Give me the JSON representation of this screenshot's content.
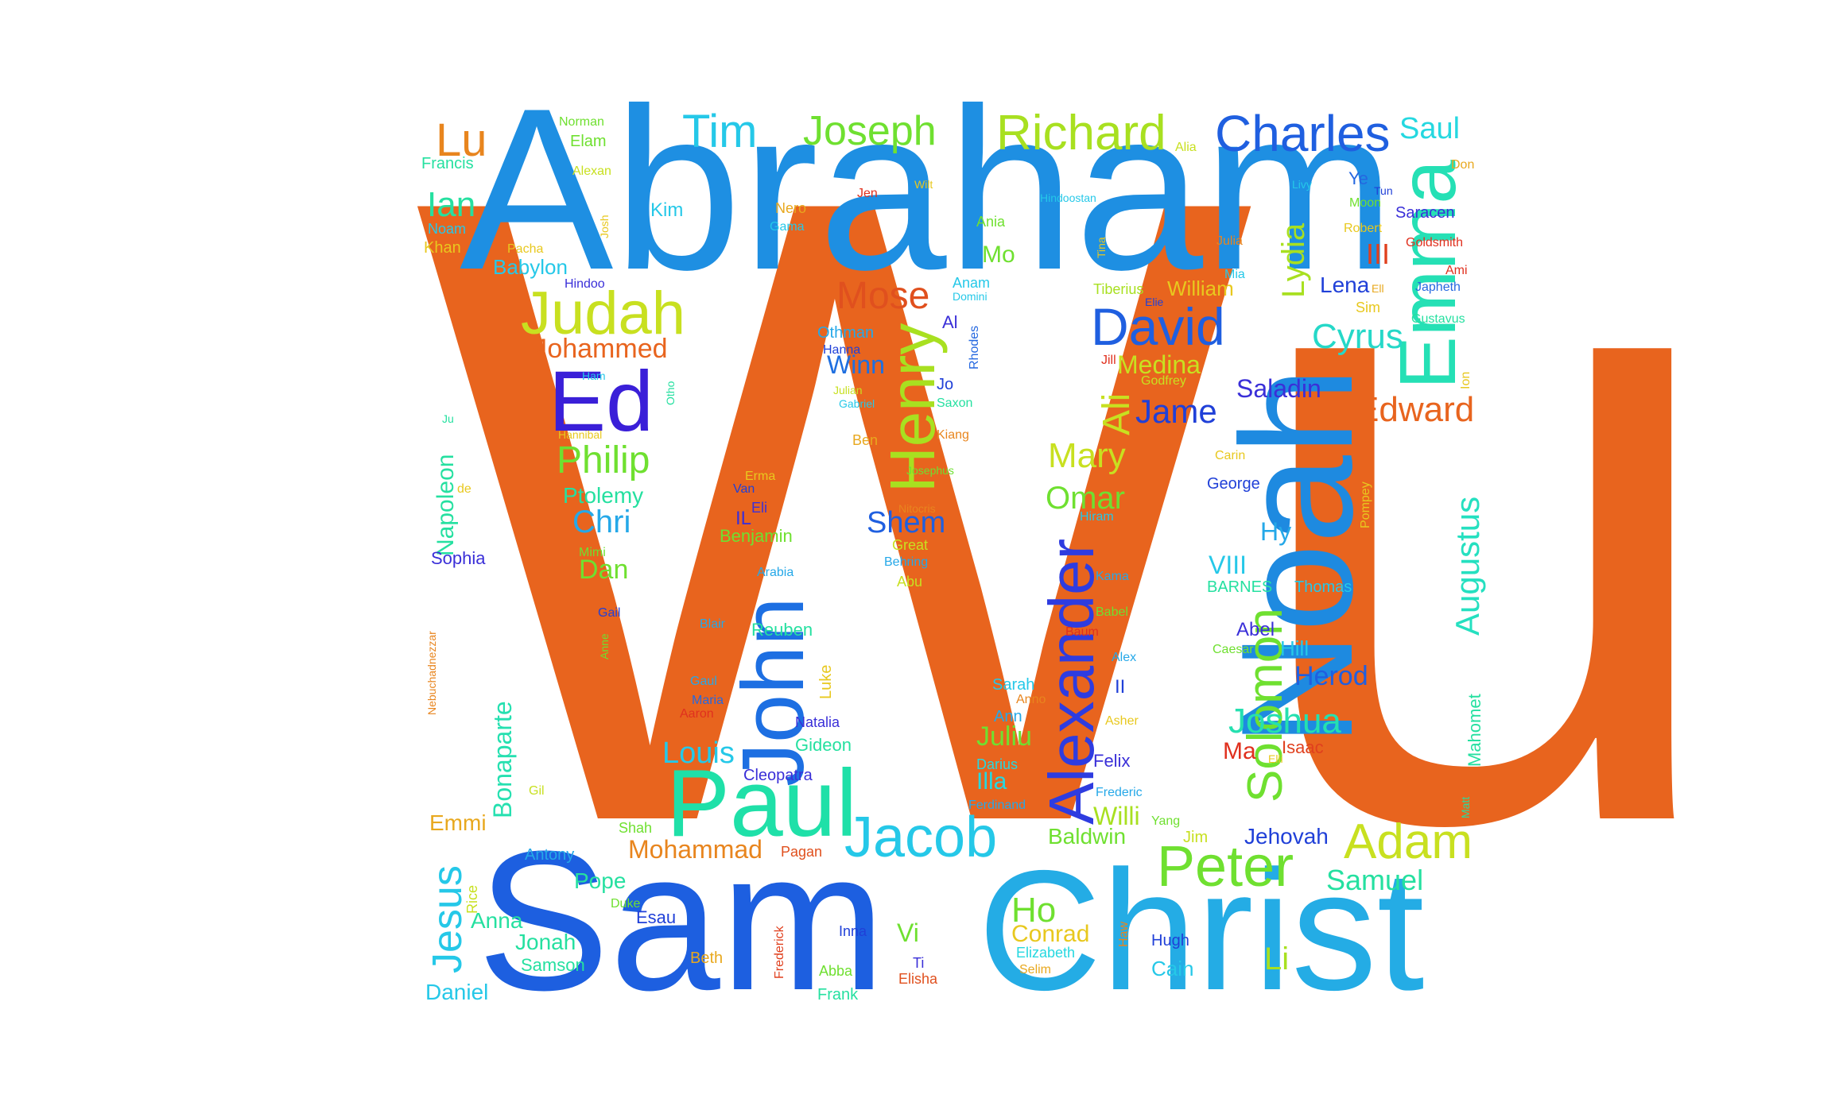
{
  "words": [
    {
      "text": "Wu",
      "color": "#E8641E"
    },
    {
      "text": "Abraham",
      "color": "#1E8FE2"
    },
    {
      "text": "Sam",
      "color": "#1D5FE0"
    },
    {
      "text": "Christ",
      "color": "#24ACE5"
    },
    {
      "text": "Noah",
      "color": "#1E8AE0"
    },
    {
      "text": "Paul",
      "color": "#1FE0A8"
    },
    {
      "text": "John",
      "color": "#1D6FE2"
    },
    {
      "text": "Alexander",
      "color": "#2E3CE0"
    },
    {
      "text": "Emma",
      "color": "#25E0B5"
    },
    {
      "text": "Henry",
      "color": "#A8E020"
    },
    {
      "text": "Jacob",
      "color": "#25C8E8"
    },
    {
      "text": "Peter",
      "color": "#6FE030"
    },
    {
      "text": "Adam",
      "color": "#C8E020"
    },
    {
      "text": "Solomon",
      "color": "#6FE030"
    },
    {
      "text": "Judah",
      "color": "#C8E020"
    },
    {
      "text": "Ed",
      "color": "#3A1FD8"
    },
    {
      "text": "David",
      "color": "#1F5FE0"
    },
    {
      "text": "Charles",
      "color": "#1F5FE0"
    },
    {
      "text": "Richard",
      "color": "#A8E020"
    },
    {
      "text": "Joseph",
      "color": "#6FE030"
    },
    {
      "text": "Tim",
      "color": "#25C8E8"
    },
    {
      "text": "Lu",
      "color": "#E8851E"
    },
    {
      "text": "Ian",
      "color": "#25E0A0"
    },
    {
      "text": "Saul",
      "color": "#25D8E0"
    },
    {
      "text": "Augustus",
      "color": "#25E0C0"
    },
    {
      "text": "Lydia",
      "color": "#A8E020"
    },
    {
      "text": "Ali",
      "color": "#C8E020"
    },
    {
      "text": "Mose",
      "color": "#E0501E"
    },
    {
      "text": "Mohammed",
      "color": "#E8641E"
    },
    {
      "text": "Philip",
      "color": "#6FE030"
    },
    {
      "text": "Chri",
      "color": "#25A8E8"
    },
    {
      "text": "Edward",
      "color": "#E8641E"
    },
    {
      "text": "Jame",
      "color": "#2040D8"
    },
    {
      "text": "Cyrus",
      "color": "#25D8C8"
    },
    {
      "text": "Mary",
      "color": "#C8E020"
    },
    {
      "text": "Omar",
      "color": "#6FE030"
    },
    {
      "text": "Shem",
      "color": "#1F5FE0"
    },
    {
      "text": "Joshua",
      "color": "#25E0B0"
    },
    {
      "text": "Herod",
      "color": "#1F5FE0"
    },
    {
      "text": "Louis",
      "color": "#25C8E8"
    },
    {
      "text": "Jesus",
      "color": "#25C8E8"
    },
    {
      "text": "Ho",
      "color": "#6FE030"
    },
    {
      "text": "Samuel",
      "color": "#25E0A0"
    },
    {
      "text": "Bonaparte",
      "color": "#25E0B0"
    },
    {
      "text": "Napoleon",
      "color": "#25E0A0"
    },
    {
      "text": "Ptolemy",
      "color": "#25E0A0"
    },
    {
      "text": "Dan",
      "color": "#6FE030"
    },
    {
      "text": "Juliu",
      "color": "#6FE030"
    },
    {
      "text": "Mohammad",
      "color": "#E8851E"
    },
    {
      "text": "Li",
      "color": "#A8E020"
    },
    {
      "text": "Illa",
      "color": "#25D8E0"
    },
    {
      "text": "Willi",
      "color": "#A8E020"
    },
    {
      "text": "VIII",
      "color": "#25C8E8"
    },
    {
      "text": "Hy",
      "color": "#25A8E8"
    },
    {
      "text": "Lena",
      "color": "#2040D8"
    },
    {
      "text": "III",
      "color": "#E0401E"
    },
    {
      "text": "Mo",
      "color": "#6FE030"
    },
    {
      "text": "Medina",
      "color": "#C8E020"
    },
    {
      "text": "Saladin",
      "color": "#3A2FD8"
    },
    {
      "text": "Winn",
      "color": "#1F6FE0"
    },
    {
      "text": "Emmi",
      "color": "#E8A81E"
    },
    {
      "text": "Conrad",
      "color": "#E8C81E"
    },
    {
      "text": "Pope",
      "color": "#25E0A0"
    },
    {
      "text": "Anna",
      "color": "#25E0A0"
    },
    {
      "text": "Jonah",
      "color": "#25E0A0"
    },
    {
      "text": "Daniel",
      "color": "#25C8E8"
    },
    {
      "text": "Baldwin",
      "color": "#6FE030"
    },
    {
      "text": "Jehovah",
      "color": "#2040D8"
    },
    {
      "text": "Vi",
      "color": "#6FE030"
    },
    {
      "text": "Kim",
      "color": "#25C8E8"
    },
    {
      "text": "Babylon",
      "color": "#25C8E8"
    },
    {
      "text": "Ma",
      "color": "#E0301E"
    },
    {
      "text": "Abel",
      "color": "#3A2FD8"
    },
    {
      "text": "Hill",
      "color": "#25C8E8"
    },
    {
      "text": "Cain",
      "color": "#25C8E8"
    },
    {
      "text": "William",
      "color": "#E8C81E"
    },
    {
      "text": "Sophia",
      "color": "#3A2FD8"
    },
    {
      "text": "Gideon",
      "color": "#25E0A0"
    },
    {
      "text": "Reuben",
      "color": "#25E0A0"
    },
    {
      "text": "Isaac",
      "color": "#E0401E"
    },
    {
      "text": "Hugh",
      "color": "#2040D8"
    },
    {
      "text": "Antony",
      "color": "#25A8E8"
    },
    {
      "text": "Esau",
      "color": "#2040D8"
    },
    {
      "text": "Samson",
      "color": "#25E0A0"
    },
    {
      "text": "Benjamin",
      "color": "#6FE030"
    },
    {
      "text": "Cleopatra",
      "color": "#3A2FD8"
    },
    {
      "text": "Natalia",
      "color": "#3A2FD8"
    },
    {
      "text": "Al",
      "color": "#3A2FD8"
    },
    {
      "text": "Jo",
      "color": "#2040D8"
    },
    {
      "text": "Felix",
      "color": "#3A2FD8"
    },
    {
      "text": "Thomas",
      "color": "#25C8E8"
    },
    {
      "text": "BARNES",
      "color": "#25E0A0"
    },
    {
      "text": "George",
      "color": "#2040D8"
    },
    {
      "text": "Sarah",
      "color": "#25C8E8"
    },
    {
      "text": "Ann",
      "color": "#25A8E8"
    },
    {
      "text": "Darius",
      "color": "#25D8E0"
    },
    {
      "text": "Yang",
      "color": "#6FE030"
    },
    {
      "text": "Jim",
      "color": "#C8E020"
    },
    {
      "text": "Pagan",
      "color": "#E0501E"
    },
    {
      "text": "Shah",
      "color": "#6FE030"
    },
    {
      "text": "Frank",
      "color": "#25E0A0"
    },
    {
      "text": "Abba",
      "color": "#6FE030"
    },
    {
      "text": "Elisha",
      "color": "#E0501E"
    },
    {
      "text": "Ti",
      "color": "#3A2FD8"
    },
    {
      "text": "Selim",
      "color": "#E8A81E"
    },
    {
      "text": "Elizabeth",
      "color": "#25D8E0"
    },
    {
      "text": "Inna",
      "color": "#2040D8"
    },
    {
      "text": "Beth",
      "color": "#E8A81E"
    },
    {
      "text": "Duke",
      "color": "#6FE030"
    },
    {
      "text": "Rice",
      "color": "#C8E020"
    },
    {
      "text": "Gil",
      "color": "#C8E020"
    },
    {
      "text": "Frederick",
      "color": "#E0401E"
    },
    {
      "text": "Haw",
      "color": "#E8851E"
    },
    {
      "text": "Frederic",
      "color": "#25A8E8"
    },
    {
      "text": "Ferdinand",
      "color": "#25A8E8"
    },
    {
      "text": "Elli",
      "color": "#E8C81E"
    },
    {
      "text": "Asher",
      "color": "#E8C81E"
    },
    {
      "text": "Anno",
      "color": "#E8851E"
    },
    {
      "text": "II",
      "color": "#2040D8"
    },
    {
      "text": "Alex",
      "color": "#25A8E8"
    },
    {
      "text": "Baum",
      "color": "#E0301E"
    },
    {
      "text": "Caesar",
      "color": "#6FE030"
    },
    {
      "text": "Babel",
      "color": "#6FE030"
    },
    {
      "text": "Kama",
      "color": "#25A8E8"
    },
    {
      "text": "Hiram",
      "color": "#25C8E8"
    },
    {
      "text": "Carin",
      "color": "#E8C81E"
    },
    {
      "text": "Pompey",
      "color": "#E8C81E"
    },
    {
      "text": "Ion",
      "color": "#E8C81E"
    },
    {
      "text": "Godfrey",
      "color": "#C8E020"
    },
    {
      "text": "Jill",
      "color": "#E0301E"
    },
    {
      "text": "Tiberius",
      "color": "#A8E020"
    },
    {
      "text": "Elie",
      "color": "#2040D8"
    },
    {
      "text": "Mia",
      "color": "#25C8E8"
    },
    {
      "text": "Julia",
      "color": "#E8851E"
    },
    {
      "text": "Tina",
      "color": "#E8C81E"
    },
    {
      "text": "Hindoostan",
      "color": "#25C8E8"
    },
    {
      "text": "Ania",
      "color": "#6FE030"
    },
    {
      "text": "Anam",
      "color": "#25C8E8"
    },
    {
      "text": "Domini",
      "color": "#25C8E8"
    },
    {
      "text": "Rhodes",
      "color": "#2568E0"
    },
    {
      "text": "Kiang",
      "color": "#E8851E"
    },
    {
      "text": "Saxon",
      "color": "#25E0A0"
    },
    {
      "text": "Josephus",
      "color": "#6FE030"
    },
    {
      "text": "Nitocris",
      "color": "#E8851E"
    },
    {
      "text": "Great",
      "color": "#C8E020"
    },
    {
      "text": "Behring",
      "color": "#25A8E8"
    },
    {
      "text": "Abu",
      "color": "#C8E020"
    },
    {
      "text": "Ben",
      "color": "#E8A81E"
    },
    {
      "text": "Othman",
      "color": "#25A8E8"
    },
    {
      "text": "Hanna",
      "color": "#2040D8"
    },
    {
      "text": "Julian",
      "color": "#C8E020"
    },
    {
      "text": "Gabriel",
      "color": "#25C8E8"
    },
    {
      "text": "Otho",
      "color": "#25E0A0"
    },
    {
      "text": "Hindoo",
      "color": "#3A2FD8"
    },
    {
      "text": "Ham",
      "color": "#25C8E8"
    },
    {
      "text": "Hannibal",
      "color": "#E8C81E"
    },
    {
      "text": "Ju",
      "color": "#25E0A0"
    },
    {
      "text": "de",
      "color": "#E8C81E"
    },
    {
      "text": "Nebuchadnezzar",
      "color": "#E8851E"
    },
    {
      "text": "Anne",
      "color": "#6FE030"
    },
    {
      "text": "Gail",
      "color": "#2040D8"
    },
    {
      "text": "Mimi",
      "color": "#6FE030"
    },
    {
      "text": "Arabia",
      "color": "#25A8E8"
    },
    {
      "text": "Blair",
      "color": "#25A8E8"
    },
    {
      "text": "Luke",
      "color": "#E8C81E"
    },
    {
      "text": "Gaul",
      "color": "#25A8E8"
    },
    {
      "text": "Maria",
      "color": "#2568E0"
    },
    {
      "text": "Aaron",
      "color": "#E0301E"
    },
    {
      "text": "Erma",
      "color": "#E8C81E"
    },
    {
      "text": "Van",
      "color": "#2040D8"
    },
    {
      "text": "Eli",
      "color": "#3A2FD8"
    },
    {
      "text": "IL",
      "color": "#3A2FD8"
    },
    {
      "text": "Josh",
      "color": "#E8C81E"
    },
    {
      "text": "Gama",
      "color": "#25C8E8"
    },
    {
      "text": "Nero",
      "color": "#E8A81E"
    },
    {
      "text": "Jen",
      "color": "#E0301E"
    },
    {
      "text": "Wilt",
      "color": "#E8C81E"
    },
    {
      "text": "Pacha",
      "color": "#E8C81E"
    },
    {
      "text": "Khan",
      "color": "#E8C81E"
    },
    {
      "text": "Noam",
      "color": "#25C8E8"
    },
    {
      "text": "Francis",
      "color": "#25E0A0"
    },
    {
      "text": "Alexan",
      "color": "#C8E020"
    },
    {
      "text": "Elam",
      "color": "#6FE030"
    },
    {
      "text": "Norman",
      "color": "#6FE030"
    },
    {
      "text": "Alia",
      "color": "#C8E020"
    },
    {
      "text": "Livy",
      "color": "#25C8E8"
    },
    {
      "text": "Ye",
      "color": "#2568E0"
    },
    {
      "text": "Tun",
      "color": "#2040D8"
    },
    {
      "text": "Moon",
      "color": "#6FE030"
    },
    {
      "text": "Saracen",
      "color": "#3A2FD8"
    },
    {
      "text": "Robert",
      "color": "#E8C81E"
    },
    {
      "text": "Goldsmith",
      "color": "#E0301E"
    },
    {
      "text": "Ami",
      "color": "#E0301E"
    },
    {
      "text": "Ell",
      "color": "#E8A81E"
    },
    {
      "text": "Japheth",
      "color": "#2568E0"
    },
    {
      "text": "Sim",
      "color": "#E8C81E"
    },
    {
      "text": "Gustavus",
      "color": "#25E0A0"
    },
    {
      "text": "Don",
      "color": "#E8A81E"
    },
    {
      "text": "Matt",
      "color": "#25E0A0"
    },
    {
      "text": "Mahomet",
      "color": "#25E0A0"
    }
  ]
}
